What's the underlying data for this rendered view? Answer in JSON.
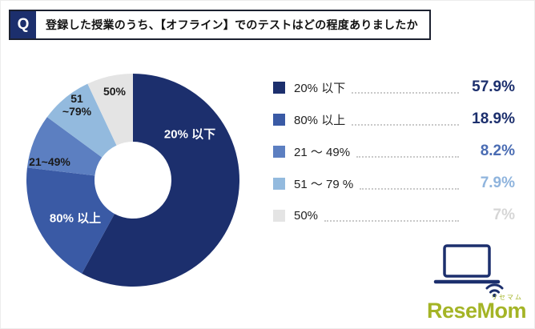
{
  "header": {
    "q_badge": "Q",
    "title": "登録した授業のうち、【オフライン】でのテストはどの程度ありましたか"
  },
  "chart_data": {
    "type": "pie",
    "donut": true,
    "start_angle_deg": 0,
    "direction": "clockwise",
    "title": "登録した授業のうち、【オフライン】でのテストはどの程度ありましたか",
    "categories": [
      "20% 以下",
      "80% 以上",
      "21 ～ 49%",
      "51 ～ 79 %",
      "50%"
    ],
    "values": [
      57.9,
      18.9,
      8.2,
      7.9,
      7.0
    ],
    "value_labels": [
      "57.9%",
      "18.9%",
      "8.2%",
      "7.9%",
      "7%"
    ],
    "colors": [
      "#1c2f6d",
      "#3a5aa5",
      "#5c7fc1",
      "#93bade",
      "#e4e4e4"
    ],
    "slice_labels": [
      "20% 以下",
      "80% 以上",
      "21~49%",
      "51\n~79%",
      "50%"
    ],
    "slice_label_colors": [
      "#ffffff",
      "#ffffff",
      "#1a1a1a",
      "#1a1a1a",
      "#1a1a1a"
    ],
    "legend_position": "right"
  },
  "legend": {
    "items": [
      {
        "label": "20% 以下",
        "value": "57.9%",
        "color": "#1c2f6d",
        "value_color": "#1c2f6d"
      },
      {
        "label": "80% 以上",
        "value": "18.9%",
        "color": "#3a5aa5",
        "value_color": "#1c2f6d"
      },
      {
        "label": "21 ～ 49%",
        "value": "8.2%",
        "color": "#5c7fc1",
        "value_color": "#4a6cb3"
      },
      {
        "label": "51 ～ 79 %",
        "value": "7.9%",
        "color": "#93bade",
        "value_color": "#8fb4dd"
      },
      {
        "label": "50%",
        "value": "7%",
        "color": "#e4e4e4",
        "value_color": "#d6d6d6"
      }
    ]
  },
  "icons": {
    "laptop_wifi": "laptop-wifi-icon",
    "color": "#1c2f6d"
  },
  "brand": {
    "sub": "リセマム",
    "name": "ReseMom",
    "color": "#a4b426"
  }
}
